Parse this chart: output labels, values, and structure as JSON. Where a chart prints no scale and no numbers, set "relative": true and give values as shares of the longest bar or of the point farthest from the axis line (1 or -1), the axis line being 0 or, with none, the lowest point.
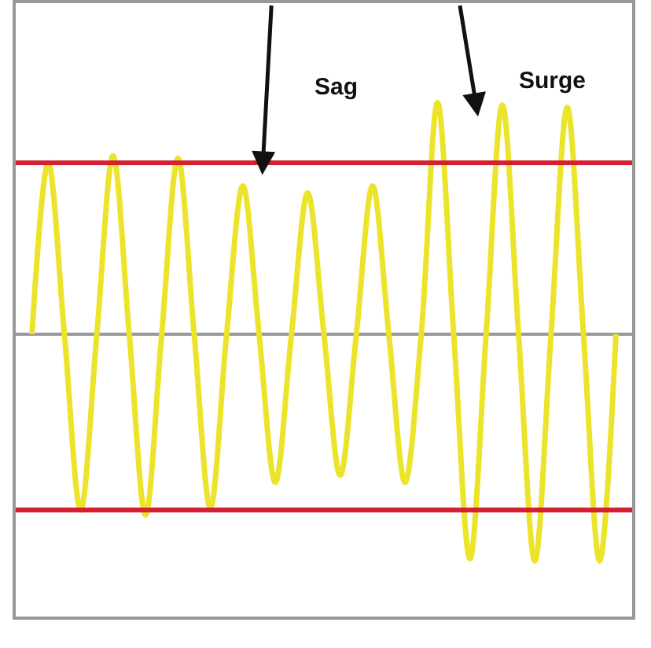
{
  "chart_data": {
    "type": "line",
    "relative": true,
    "annotations": [
      "Sag",
      "Surge"
    ],
    "categories": [
      null,
      null,
      null,
      null,
      null,
      null,
      null,
      null,
      null,
      null,
      null,
      null,
      null,
      null,
      null,
      null,
      null,
      null,
      null,
      null,
      null,
      null,
      null,
      null,
      null,
      null,
      null,
      null,
      null,
      null,
      null,
      null,
      null,
      null,
      null,
      null,
      null
    ],
    "series": [
      {
        "color": "#ece42a",
        "values": [
          0,
          0.74,
          0,
          -0.76,
          0,
          0.77,
          0,
          -0.78,
          0,
          0.76,
          0,
          -0.75,
          0,
          0.64,
          0,
          -0.64,
          0,
          0.61,
          0,
          -0.61,
          0,
          0.64,
          0,
          -0.64,
          0,
          1,
          0,
          -0.97,
          0,
          0.99,
          0,
          -0.98,
          0,
          0.98,
          0,
          -0.98,
          0
        ]
      }
    ],
    "ref_lines": [
      {
        "axis": "y",
        "value": 0.74,
        "color": "#d42030"
      },
      {
        "axis": "y",
        "value": -0.76,
        "color": "#d42030"
      }
    ],
    "grid": false,
    "marker": "none",
    "line_style": "solid"
  }
}
